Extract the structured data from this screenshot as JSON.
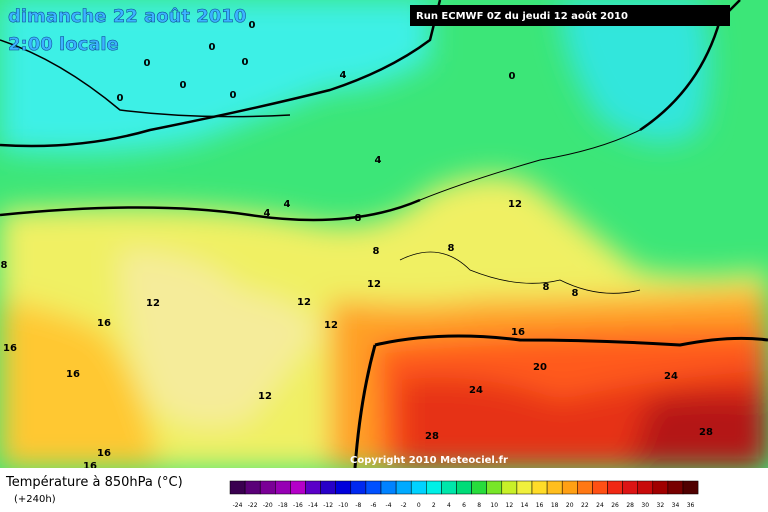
{
  "header": {
    "date": "dimanche 22 août 2010",
    "time": "2:00 locale",
    "run": "Run ECMWF 0Z du jeudi 12 août 2010"
  },
  "map": {
    "contour_labels": [
      "0",
      "0",
      "0",
      "0",
      "0",
      "0",
      "0",
      "0",
      "4",
      "4",
      "4",
      "4",
      "8",
      "8",
      "8",
      "8",
      "12",
      "12",
      "12",
      "12",
      "12",
      "8",
      "8",
      "16",
      "16",
      "16",
      "16",
      "20",
      "24",
      "24",
      "12",
      "28",
      "28",
      "16",
      "16"
    ]
  },
  "footer": {
    "copyright": "Copyright 2010 Meteociel.fr",
    "legend_title": "Température à 850hPa (°C)",
    "lead_time": "(+240h)",
    "scale": [
      -24,
      -22,
      -20,
      -18,
      -16,
      -14,
      -12,
      -10,
      -8,
      -6,
      -4,
      -2,
      0,
      2,
      4,
      6,
      8,
      10,
      12,
      14,
      16,
      18,
      20,
      22,
      24,
      26,
      28,
      30,
      32,
      34,
      36
    ],
    "scale_colors": [
      "#3a0050",
      "#5a0078",
      "#7a0096",
      "#9600b4",
      "#b400c8",
      "#5a00c8",
      "#2800c8",
      "#0000dc",
      "#0028f0",
      "#0050ff",
      "#0082ff",
      "#00aaff",
      "#00d2ff",
      "#00f0e6",
      "#00e6aa",
      "#00dc78",
      "#28dc3c",
      "#78e628",
      "#c8f028",
      "#f0f03c",
      "#ffdc28",
      "#ffbe1e",
      "#ffa014",
      "#ff7814",
      "#ff5014",
      "#f02814",
      "#dc1414",
      "#c80a0a",
      "#a00000",
      "#780000",
      "#500000"
    ]
  }
}
